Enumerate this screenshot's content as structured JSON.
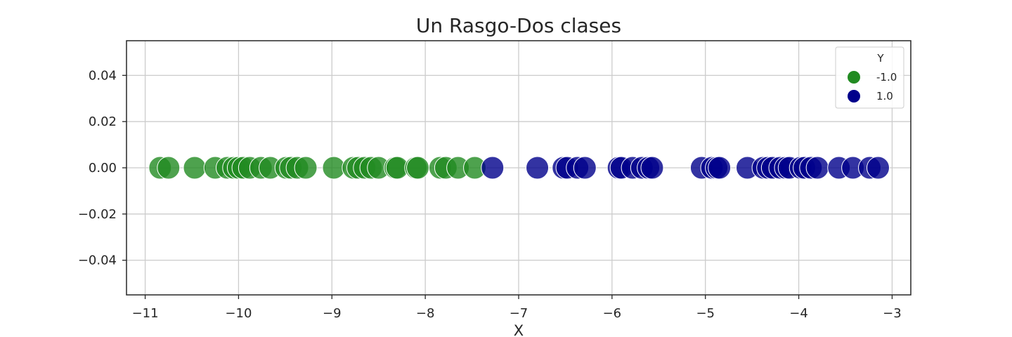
{
  "chart_data": {
    "type": "scatter",
    "title": "Un Rasgo-Dos clases",
    "xlabel": "X",
    "ylabel": "",
    "xlim": [
      -11.2,
      -2.8
    ],
    "ylim": [
      -0.055,
      0.055
    ],
    "xticks": [
      -11,
      -10,
      -9,
      -8,
      -7,
      -6,
      -5,
      -4,
      -3
    ],
    "xtick_labels": [
      "−11",
      "−10",
      "−9",
      "−8",
      "−7",
      "−6",
      "−5",
      "−4",
      "−3"
    ],
    "yticks": [
      0.04,
      0.02,
      0.0,
      -0.02,
      -0.04
    ],
    "ytick_labels": [
      "0.04",
      "0.02",
      "0.00",
      "−0.02",
      "−0.04"
    ],
    "grid": true,
    "legend": {
      "title": "Y",
      "placement": "top-right",
      "entries": [
        {
          "label": "-1.0",
          "color": "#228B22"
        },
        {
          "label": "1.0",
          "color": "#00008B"
        }
      ]
    },
    "series": [
      {
        "name": "-1.0",
        "color": "#228B22",
        "x": [
          -10.84,
          -10.75,
          -10.47,
          -10.25,
          -10.12,
          -10.05,
          -10.0,
          -9.95,
          -9.88,
          -9.76,
          -9.66,
          -9.49,
          -9.44,
          -9.37,
          -9.28,
          -8.98,
          -8.77,
          -8.72,
          -8.65,
          -8.58,
          -8.5,
          -8.32,
          -8.3,
          -8.1,
          -8.08,
          -7.84,
          -7.78,
          -7.65,
          -7.47
        ],
        "y": [
          0,
          0,
          0,
          0,
          0,
          0,
          0,
          0,
          0,
          0,
          0,
          0,
          0,
          0,
          0,
          0,
          0,
          0,
          0,
          0,
          0,
          0,
          0,
          0,
          0,
          0,
          0,
          0,
          0
        ]
      },
      {
        "name": "1.0",
        "color": "#00008B",
        "x": [
          -7.28,
          -6.8,
          -6.52,
          -6.48,
          -6.37,
          -6.29,
          -5.93,
          -5.9,
          -5.78,
          -5.68,
          -5.61,
          -5.57,
          -5.04,
          -4.93,
          -4.88,
          -4.85,
          -4.55,
          -4.38,
          -4.33,
          -4.28,
          -4.2,
          -4.14,
          -4.1,
          -3.98,
          -3.94,
          -3.87,
          -3.8,
          -3.57,
          -3.42,
          -3.24,
          -3.15
        ],
        "y": [
          0,
          0,
          0,
          0,
          0,
          0,
          0,
          0,
          0,
          0,
          0,
          0,
          0,
          0,
          0,
          0,
          0,
          0,
          0,
          0,
          0,
          0,
          0,
          0,
          0,
          0,
          0,
          0,
          0,
          0,
          0
        ]
      }
    ]
  }
}
